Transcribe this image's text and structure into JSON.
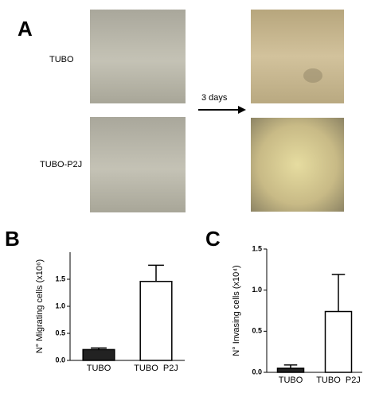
{
  "panel_a": {
    "label": "A",
    "rows": [
      "TUBO",
      "TUBO-P2J"
    ],
    "arrow_label": "3 days"
  },
  "chart_data": [
    {
      "type": "bar",
      "panel": "B",
      "ylabel": "N° Migrating cells (x10⁶)",
      "categories": [
        "TUBO",
        "TUBO  P2J"
      ],
      "values": [
        0.2,
        1.46
      ],
      "errors": [
        0.03,
        0.3
      ],
      "colors": [
        "#222222",
        "#ffffff"
      ],
      "ylim": [
        0,
        2
      ],
      "yticks": [
        {
          "value": 0,
          "label": "0.0"
        },
        {
          "value": 0.5,
          "label": "0.5"
        },
        {
          "value": 1,
          "label": "1.0"
        },
        {
          "value": 1.5,
          "label": "1.5"
        }
      ]
    },
    {
      "type": "bar",
      "panel": "C",
      "ylabel": "N° Invasing cells (x10⁴)",
      "categories": [
        "TUBO",
        "TUBO  P2J"
      ],
      "values": [
        0.05,
        0.74
      ],
      "errors": [
        0.04,
        0.45
      ],
      "colors": [
        "#222222",
        "#ffffff"
      ],
      "ylim": [
        0,
        1.5
      ],
      "yticks": [
        {
          "value": 0,
          "label": "0.0"
        },
        {
          "value": 0.5,
          "label": "0.5"
        },
        {
          "value": 1,
          "label": "1.0"
        },
        {
          "value": 1.5,
          "label": "1.5"
        }
      ]
    }
  ]
}
